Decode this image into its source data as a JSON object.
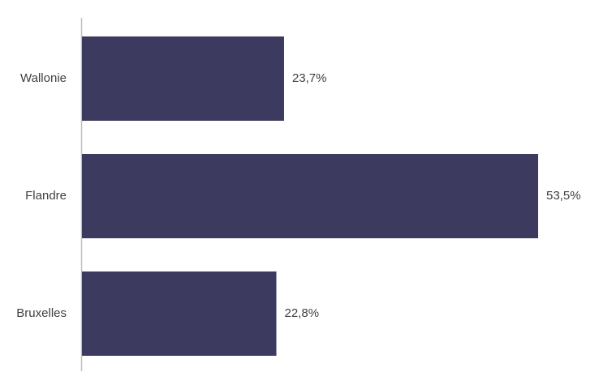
{
  "chart_data": {
    "type": "hbar",
    "categories": [
      "Wallonie",
      "Flandre",
      "Bruxelles"
    ],
    "values": [
      23.7,
      53.5,
      22.8
    ],
    "value_labels": [
      "23,7%",
      "53,5%",
      "22,8%"
    ],
    "color": "#3d3a5f"
  }
}
